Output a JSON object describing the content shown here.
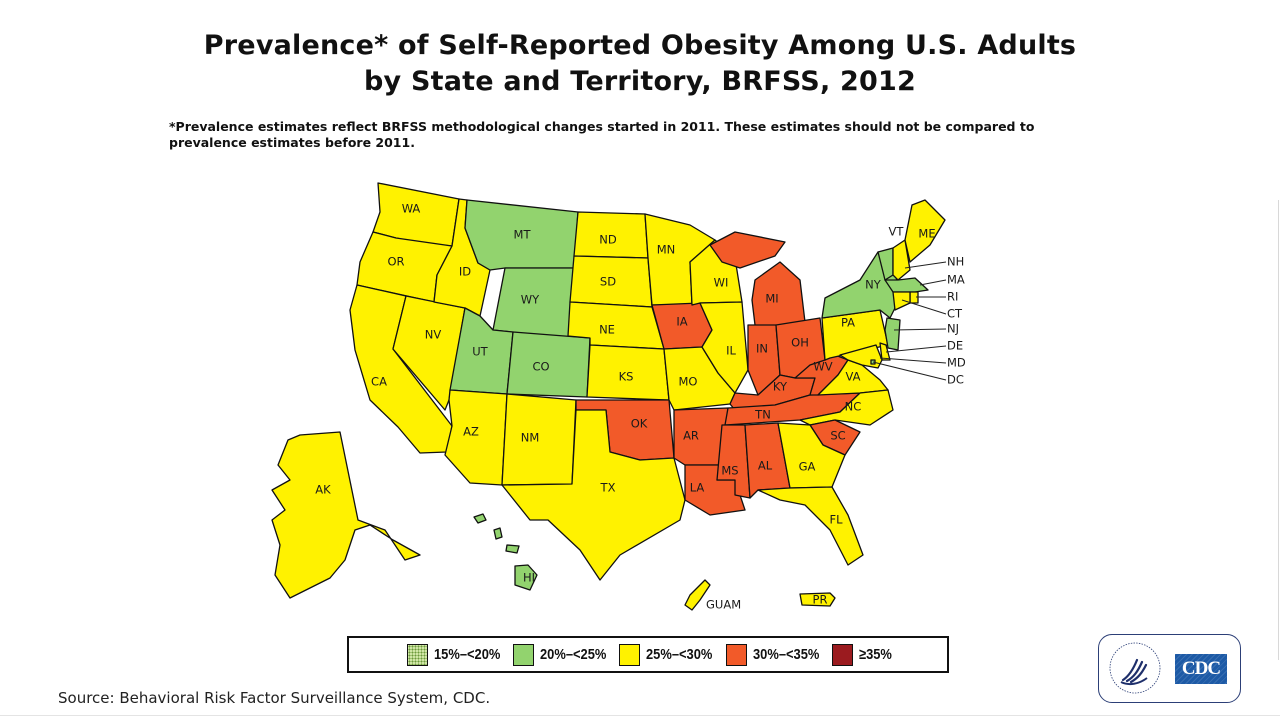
{
  "title_line1": "Prevalence* of Self-Reported Obesity Among U.S. Adults",
  "title_line2": "by State and Territory, BRFSS, 2012",
  "footnote_line1": "*Prevalence estimates reflect BRFSS methodological changes started in 2011. These estimates should not be compared to",
  "footnote_line2": "prevalence estimates before 2011.",
  "source": "Source: Behavioral Risk Factor Surveillance System, CDC.",
  "logo": {
    "brand": "CDC",
    "icon": "hhs-eagle-icon"
  },
  "colors": {
    "c15_20": "#cfe6a5",
    "c20_25": "#92d36e",
    "c25_30": "#fff200",
    "c30_35": "#f25a29",
    "c35_plus": "#9b1b1f"
  },
  "legend": [
    {
      "key": "c15_20",
      "label": "15%–<20%"
    },
    {
      "key": "c20_25",
      "label": "20%–<25%"
    },
    {
      "key": "c25_30",
      "label": "25%–<30%"
    },
    {
      "key": "c30_35",
      "label": "30%–<35%"
    },
    {
      "key": "c35_plus",
      "label": "≥35%"
    }
  ],
  "chart_data": {
    "type": "choropleth",
    "title": "Prevalence* of Self-Reported Obesity Among U.S. Adults by State and Territory, BRFSS, 2012",
    "categories": [
      "15%–<20%",
      "20%–<25%",
      "25%–<30%",
      "30%–<35%",
      "≥35%"
    ],
    "legend_position": "bottom",
    "regions": {
      "WA": "25%–<30%",
      "OR": "25%–<30%",
      "CA": "25%–<30%",
      "NV": "25%–<30%",
      "ID": "25%–<30%",
      "MT": "20%–<25%",
      "WY": "20%–<25%",
      "UT": "20%–<25%",
      "CO": "20%–<25%",
      "AZ": "25%–<30%",
      "NM": "25%–<30%",
      "ND": "25%–<30%",
      "SD": "25%–<30%",
      "NE": "25%–<30%",
      "KS": "25%–<30%",
      "OK": "30%–<35%",
      "TX": "25%–<30%",
      "MN": "25%–<30%",
      "IA": "30%–<35%",
      "MO": "25%–<30%",
      "AR": "30%–<35%",
      "LA": "30%–<35%",
      "WI": "25%–<30%",
      "IL": "25%–<30%",
      "MI": "30%–<35%",
      "IN": "30%–<35%",
      "OH": "30%–<35%",
      "KY": "30%–<35%",
      "TN": "30%–<35%",
      "MS": "30%–<35%",
      "AL": "30%–<35%",
      "WV": "30%–<35%",
      "VA": "25%–<30%",
      "NC": "25%–<30%",
      "SC": "30%–<35%",
      "GA": "25%–<30%",
      "FL": "25%–<30%",
      "PA": "25%–<30%",
      "NY": "20%–<25%",
      "VT": "20%–<25%",
      "NH": "25%–<30%",
      "ME": "25%–<30%",
      "MA": "20%–<25%",
      "RI": "25%–<30%",
      "CT": "25%–<30%",
      "NJ": "20%–<25%",
      "DE": "25%–<30%",
      "MD": "25%–<30%",
      "DC": "20%–<25%",
      "AK": "25%–<30%",
      "HI": "20%–<25%",
      "GUAM": "25%–<30%",
      "PR": "25%–<30%"
    }
  }
}
